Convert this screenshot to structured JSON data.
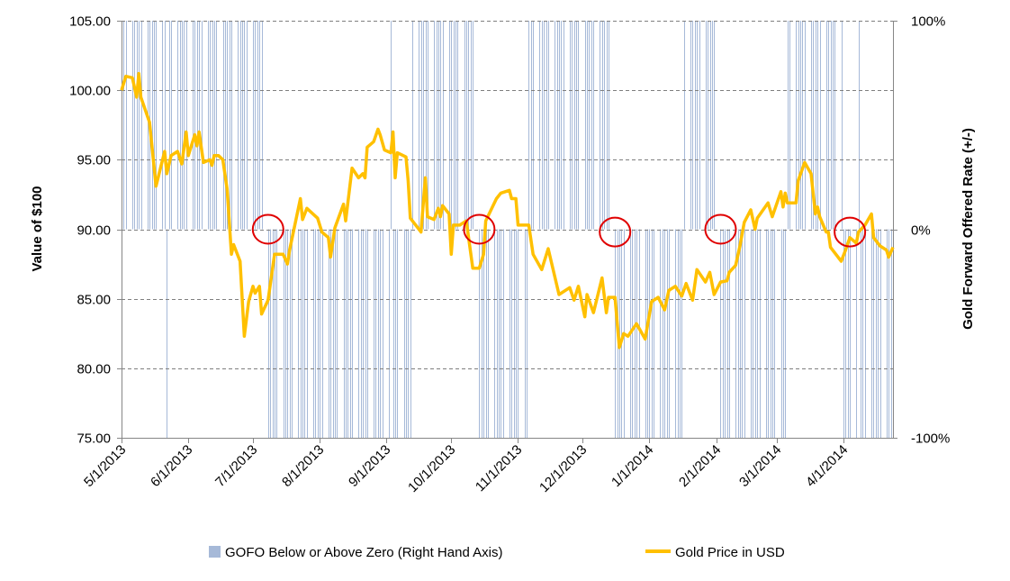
{
  "chart_data": {
    "type": "line",
    "title": "",
    "ylabel": "Value of $100",
    "y2label": "Gold Forward Offered Rate (+/-)",
    "ylim": [
      75,
      105
    ],
    "y2lim": [
      -100,
      100
    ],
    "yticks": [
      "75.00",
      "80.00",
      "85.00",
      "90.00",
      "95.00",
      "100.00",
      "105.00"
    ],
    "y2ticks": [
      "-100%",
      "0%",
      "100%"
    ],
    "xticks": [
      "5/1/2013",
      "6/1/2013",
      "7/1/2013",
      "8/1/2013",
      "9/1/2013",
      "10/1/2013",
      "11/1/2013",
      "12/1/2013",
      "1/1/2014",
      "2/1/2014",
      "3/1/2014",
      "4/1/2014"
    ],
    "xlim": [
      "2013-05-01",
      "2014-04-24"
    ],
    "grid": "horizontal dashed",
    "legend_position": "bottom",
    "colors": {
      "gold": "#ffc000",
      "gofo": "#a6b9d8",
      "circle": "#e00000",
      "grid": "#7f7f7f"
    },
    "series": [
      {
        "name": "GOFO Below or Above Zero (Right Hand Axis)",
        "type": "bar",
        "axis": "right",
        "regimes": [
          {
            "start": "2013-05-01",
            "end": "2013-07-06",
            "value": 100
          },
          {
            "start": "2013-07-08",
            "end": "2013-09-12",
            "value": -100
          },
          {
            "start": "2013-09-13",
            "end": "2013-10-13",
            "value": 100
          },
          {
            "start": "2013-10-14",
            "end": "2013-11-05",
            "value": -100
          },
          {
            "start": "2013-11-06",
            "end": "2013-12-15",
            "value": 100
          },
          {
            "start": "2013-12-16",
            "end": "2014-01-16",
            "value": -100
          },
          {
            "start": "2014-01-17",
            "end": "2014-02-02",
            "value": 100
          },
          {
            "start": "2014-02-03",
            "end": "2014-03-05",
            "value": -100
          },
          {
            "start": "2014-03-06",
            "end": "2014-03-31",
            "value": 100
          },
          {
            "start": "2014-04-01",
            "end": "2014-04-24",
            "value": -100
          }
        ],
        "exceptions": [
          {
            "date": "2013-05-22",
            "value": -100
          },
          {
            "date": "2013-09-03",
            "value": 100
          },
          {
            "date": "2014-04-08",
            "value": 100
          }
        ]
      },
      {
        "name": "Gold Price in USD",
        "type": "line",
        "axis": "left",
        "points": [
          [
            "2013-05-01",
            100.0
          ],
          [
            "2013-05-03",
            101.0
          ],
          [
            "2013-05-06",
            100.9
          ],
          [
            "2013-05-08",
            99.5
          ],
          [
            "2013-05-09",
            101.2
          ],
          [
            "2013-05-10",
            99.5
          ],
          [
            "2013-05-14",
            97.7
          ],
          [
            "2013-05-17",
            93.1
          ],
          [
            "2013-05-21",
            95.6
          ],
          [
            "2013-05-22",
            94.0
          ],
          [
            "2013-05-24",
            95.3
          ],
          [
            "2013-05-27",
            95.6
          ],
          [
            "2013-05-29",
            94.7
          ],
          [
            "2013-05-31",
            97.0
          ],
          [
            "2013-06-01",
            95.3
          ],
          [
            "2013-06-04",
            96.8
          ],
          [
            "2013-06-05",
            96.0
          ],
          [
            "2013-06-06",
            97.0
          ],
          [
            "2013-06-08",
            94.8
          ],
          [
            "2013-06-11",
            95.0
          ],
          [
            "2013-06-12",
            94.6
          ],
          [
            "2013-06-13",
            95.3
          ],
          [
            "2013-06-15",
            95.3
          ],
          [
            "2013-06-17",
            95.0
          ],
          [
            "2013-06-19",
            92.9
          ],
          [
            "2013-06-21",
            88.2
          ],
          [
            "2013-06-22",
            88.9
          ],
          [
            "2013-06-25",
            87.7
          ],
          [
            "2013-06-27",
            82.3
          ],
          [
            "2013-06-29",
            84.8
          ],
          [
            "2013-07-01",
            85.9
          ],
          [
            "2013-07-02",
            85.4
          ],
          [
            "2013-07-04",
            85.9
          ],
          [
            "2013-07-05",
            83.9
          ],
          [
            "2013-07-08",
            84.9
          ],
          [
            "2013-07-11",
            88.2
          ],
          [
            "2013-07-15",
            88.2
          ],
          [
            "2013-07-17",
            87.5
          ],
          [
            "2013-07-18",
            88.5
          ],
          [
            "2013-07-23",
            92.2
          ],
          [
            "2013-07-24",
            90.7
          ],
          [
            "2013-07-26",
            91.5
          ],
          [
            "2013-07-31",
            90.8
          ],
          [
            "2013-08-02",
            89.8
          ],
          [
            "2013-08-05",
            89.4
          ],
          [
            "2013-08-06",
            88.0
          ],
          [
            "2013-08-08",
            90.1
          ],
          [
            "2013-08-12",
            91.8
          ],
          [
            "2013-08-13",
            90.6
          ],
          [
            "2013-08-16",
            94.4
          ],
          [
            "2013-08-19",
            93.7
          ],
          [
            "2013-08-21",
            94.0
          ],
          [
            "2013-08-22",
            93.7
          ],
          [
            "2013-08-23",
            95.9
          ],
          [
            "2013-08-26",
            96.3
          ],
          [
            "2013-08-28",
            97.2
          ],
          [
            "2013-08-29",
            96.8
          ],
          [
            "2013-08-31",
            95.7
          ],
          [
            "2013-09-03",
            95.5
          ],
          [
            "2013-09-04",
            97.0
          ],
          [
            "2013-09-05",
            93.7
          ],
          [
            "2013-09-06",
            95.5
          ],
          [
            "2013-09-10",
            95.2
          ],
          [
            "2013-09-11",
            93.5
          ],
          [
            "2013-09-12",
            90.8
          ],
          [
            "2013-09-15",
            90.2
          ],
          [
            "2013-09-17",
            89.8
          ],
          [
            "2013-09-19",
            93.7
          ],
          [
            "2013-09-20",
            90.9
          ],
          [
            "2013-09-23",
            90.7
          ],
          [
            "2013-09-25",
            91.5
          ],
          [
            "2013-09-26",
            90.9
          ],
          [
            "2013-09-27",
            91.7
          ],
          [
            "2013-09-30",
            91.1
          ],
          [
            "2013-10-01",
            88.2
          ],
          [
            "2013-10-02",
            90.3
          ],
          [
            "2013-10-05",
            90.3
          ],
          [
            "2013-10-08",
            90.6
          ],
          [
            "2013-10-11",
            87.2
          ],
          [
            "2013-10-14",
            87.2
          ],
          [
            "2013-10-16",
            88.2
          ],
          [
            "2013-10-17",
            90.6
          ],
          [
            "2013-10-22",
            92.2
          ],
          [
            "2013-10-24",
            92.6
          ],
          [
            "2013-10-28",
            92.8
          ],
          [
            "2013-10-29",
            92.2
          ],
          [
            "2013-10-31",
            92.2
          ],
          [
            "2013-11-01",
            90.3
          ],
          [
            "2013-11-06",
            90.3
          ],
          [
            "2013-11-08",
            88.2
          ],
          [
            "2013-11-12",
            87.1
          ],
          [
            "2013-11-15",
            88.6
          ],
          [
            "2013-11-20",
            85.3
          ],
          [
            "2013-11-25",
            85.8
          ],
          [
            "2013-11-27",
            84.9
          ],
          [
            "2013-11-29",
            85.9
          ],
          [
            "2013-12-02",
            83.7
          ],
          [
            "2013-12-03",
            85.3
          ],
          [
            "2013-12-06",
            84.0
          ],
          [
            "2013-12-10",
            86.5
          ],
          [
            "2013-12-12",
            84.0
          ],
          [
            "2013-12-13",
            85.1
          ],
          [
            "2013-12-16",
            85.1
          ],
          [
            "2013-12-18",
            81.5
          ],
          [
            "2013-12-20",
            82.5
          ],
          [
            "2013-12-22",
            82.3
          ],
          [
            "2013-12-26",
            83.2
          ],
          [
            "2013-12-30",
            82.1
          ],
          [
            "2014-01-02",
            84.8
          ],
          [
            "2014-01-05",
            85.1
          ],
          [
            "2014-01-08",
            84.2
          ],
          [
            "2014-01-10",
            85.6
          ],
          [
            "2014-01-13",
            85.9
          ],
          [
            "2014-01-16",
            85.2
          ],
          [
            "2014-01-18",
            86.1
          ],
          [
            "2014-01-21",
            84.9
          ],
          [
            "2014-01-23",
            87.1
          ],
          [
            "2014-01-27",
            86.2
          ],
          [
            "2014-01-29",
            86.9
          ],
          [
            "2014-01-31",
            85.3
          ],
          [
            "2014-02-03",
            86.2
          ],
          [
            "2014-02-06",
            86.3
          ],
          [
            "2014-02-07",
            86.9
          ],
          [
            "2014-02-10",
            87.4
          ],
          [
            "2014-02-12",
            88.8
          ],
          [
            "2014-02-14",
            90.5
          ],
          [
            "2014-02-17",
            91.4
          ],
          [
            "2014-02-19",
            90.0
          ],
          [
            "2014-02-20",
            90.8
          ],
          [
            "2014-02-25",
            91.9
          ],
          [
            "2014-02-27",
            90.9
          ],
          [
            "2014-03-03",
            92.7
          ],
          [
            "2014-03-04",
            91.6
          ],
          [
            "2014-03-05",
            92.6
          ],
          [
            "2014-03-06",
            91.9
          ],
          [
            "2014-03-10",
            91.9
          ],
          [
            "2014-03-11",
            93.5
          ],
          [
            "2014-03-14",
            94.8
          ],
          [
            "2014-03-17",
            94.0
          ],
          [
            "2014-03-19",
            91.1
          ],
          [
            "2014-03-20",
            91.6
          ],
          [
            "2014-03-21",
            90.9
          ],
          [
            "2014-03-24",
            89.8
          ],
          [
            "2014-03-25",
            89.8
          ],
          [
            "2014-03-26",
            88.7
          ],
          [
            "2014-03-31",
            87.7
          ],
          [
            "2014-04-02",
            88.5
          ],
          [
            "2014-04-04",
            89.4
          ],
          [
            "2014-04-07",
            89.0
          ],
          [
            "2014-04-08",
            89.8
          ],
          [
            "2014-04-11",
            90.3
          ],
          [
            "2014-04-14",
            91.1
          ],
          [
            "2014-04-15",
            89.4
          ],
          [
            "2014-04-18",
            88.8
          ],
          [
            "2014-04-21",
            88.5
          ],
          [
            "2014-04-22",
            88.0
          ],
          [
            "2014-04-24",
            88.7
          ]
        ]
      }
    ],
    "annotations": [
      {
        "type": "circle",
        "date": "2013-07-08",
        "value": 90
      },
      {
        "type": "circle",
        "date": "2013-10-14",
        "value": 90
      },
      {
        "type": "circle",
        "date": "2013-12-16",
        "value": 89.8
      },
      {
        "type": "circle",
        "date": "2014-02-03",
        "value": 90
      },
      {
        "type": "circle",
        "date": "2014-04-04",
        "value": 89.8
      }
    ]
  }
}
